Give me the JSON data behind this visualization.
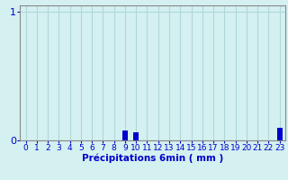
{
  "categories": [
    0,
    1,
    2,
    3,
    4,
    5,
    6,
    7,
    8,
    9,
    10,
    11,
    12,
    13,
    14,
    15,
    16,
    17,
    18,
    19,
    20,
    21,
    22,
    23
  ],
  "values": [
    0,
    0,
    0,
    0,
    0,
    0,
    0,
    0,
    0,
    0.08,
    0.06,
    0,
    0,
    0,
    0,
    0,
    0,
    0,
    0,
    0,
    0,
    0,
    0,
    0.1
  ],
  "bar_color": "#0000cc",
  "background_color": "#d4f0f0",
  "grid_color": "#b0d8d8",
  "axis_color": "#888888",
  "text_color": "#0000cc",
  "xlabel": "Précipitations 6min ( mm )",
  "ylim": [
    0,
    1.05
  ],
  "xlim": [
    -0.5,
    23.5
  ],
  "yticks": [
    0,
    1
  ],
  "xticks": [
    0,
    1,
    2,
    3,
    4,
    5,
    6,
    7,
    8,
    9,
    10,
    11,
    12,
    13,
    14,
    15,
    16,
    17,
    18,
    19,
    20,
    21,
    22,
    23
  ],
  "xlabel_fontsize": 7.5,
  "tick_fontsize": 6.5,
  "ytick_fontsize": 8
}
